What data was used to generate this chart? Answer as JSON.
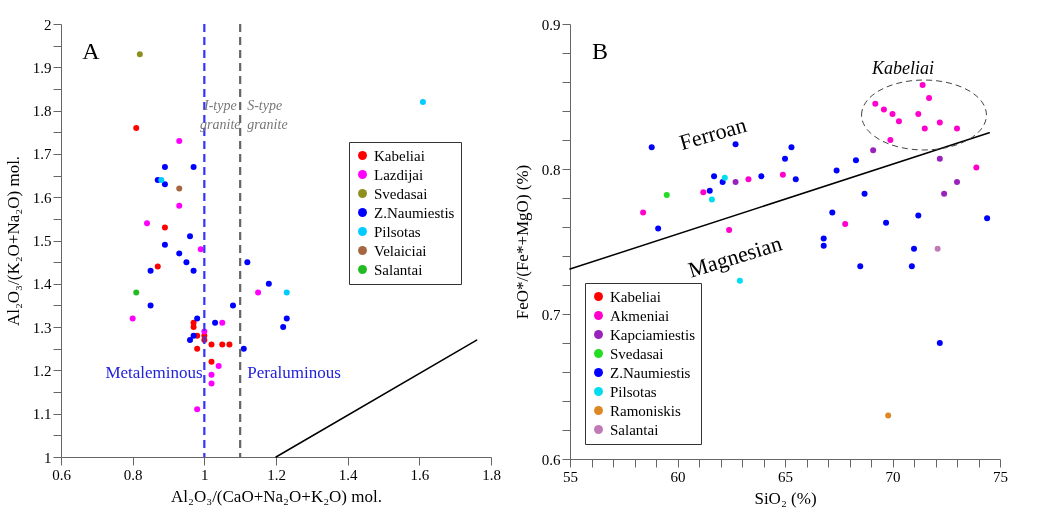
{
  "chart_data": [
    {
      "type": "scatter",
      "xlabel": "Al₂O₃/(CaO+Na₂O+K₂O) mol.",
      "ylabel": "Al₂O₃/(K₂O+Na₂O) mol.",
      "xlim": [
        0.6,
        1.8
      ],
      "xticks": [
        0.6,
        0.8,
        1,
        1.2,
        1.4,
        1.6,
        1.8
      ],
      "ylim": [
        1,
        2
      ],
      "yticks": [
        1,
        {
          "value": 1.05,
          "label": null
        },
        1.1,
        {
          "value": 1.15,
          "label": null
        },
        1.2,
        {
          "value": 1.25,
          "label": null
        },
        1.3,
        {
          "value": 1.35,
          "label": null
        },
        1.4,
        {
          "value": 1.45,
          "label": null
        },
        1.5,
        {
          "value": 1.55,
          "label": null
        },
        1.6,
        {
          "value": 1.65,
          "label": null
        },
        1.7,
        {
          "value": 1.75,
          "label": null
        },
        1.8,
        {
          "value": 1.85,
          "label": null
        },
        1.9,
        {
          "value": 1.95,
          "label": null
        },
        2
      ],
      "legend": "right",
      "marker": "circle",
      "series": [
        {
          "name": "Kabeliai",
          "color": "#ff0000",
          "x": [
            0.81,
            0.89,
            0.87,
            0.97,
            0.97,
            0.98,
            1.0,
            1.0,
            0.98,
            1.02,
            1.05,
            1.07,
            1.02
          ],
          "values": [
            1.76,
            1.53,
            1.44,
            1.31,
            1.3,
            1.28,
            1.28,
            1.27,
            1.25,
            1.26,
            1.26,
            1.26,
            1.22
          ]
        },
        {
          "name": "Lazdijai",
          "color": "#ff00ff",
          "x": [
            0.93,
            0.93,
            0.84,
            0.99,
            0.8,
            1.05,
            1.0,
            1.04,
            1.02,
            1.02,
            0.98,
            1.15
          ],
          "values": [
            1.73,
            1.58,
            1.54,
            1.48,
            1.32,
            1.31,
            1.29,
            1.21,
            1.19,
            1.17,
            1.11,
            1.38
          ]
        },
        {
          "name": "Svedasai",
          "color": "#8f8f1f",
          "x": [
            0.82
          ],
          "values": [
            1.93
          ]
        },
        {
          "name": "Z.Naumiestis",
          "color": "#0000ff",
          "x": [
            0.89,
            0.97,
            0.87,
            0.89,
            0.96,
            0.89,
            0.93,
            0.95,
            0.85,
            0.97,
            0.85,
            0.98,
            1.03,
            0.96,
            0.97,
            1.08,
            1.11,
            1.12,
            1.18,
            1.23,
            1.22
          ],
          "values": [
            1.67,
            1.67,
            1.64,
            1.63,
            1.51,
            1.49,
            1.47,
            1.45,
            1.43,
            1.43,
            1.35,
            1.32,
            1.31,
            1.27,
            1.28,
            1.35,
            1.25,
            1.45,
            1.4,
            1.32,
            1.3
          ]
        },
        {
          "name": "Pilsotas",
          "color": "#00ccff",
          "x": [
            0.88,
            1.61,
            1.23
          ],
          "values": [
            1.64,
            1.82,
            1.38
          ]
        },
        {
          "name": "Velaiciai",
          "color": "#a5673f",
          "x": [
            0.93
          ],
          "values": [
            1.62
          ]
        },
        {
          "name": "Salantai",
          "color": "#22bb22",
          "x": [
            0.81
          ],
          "values": [
            1.38
          ]
        },
        {
          "type": "line",
          "color": "#000000",
          "marker": "none",
          "x": [
            1.2,
            1.76
          ],
          "values": [
            1.0,
            1.27
          ]
        }
      ],
      "ref_lines": [
        {
          "axis": "x",
          "value": 1,
          "label": "I-type granite",
          "color": "#3333ff",
          "line_style": "dashed"
        },
        {
          "axis": "x",
          "value": 1.1,
          "label": "S-type granite",
          "color": "#666666",
          "line_style": "dashed"
        }
      ],
      "annotations": [
        "A",
        "Metaleminous",
        "Peraluminous"
      ]
    },
    {
      "type": "scatter",
      "xlabel": "SiO₂ (%)",
      "ylabel": "FeO*/(Fe*+MgO) (%)",
      "xlim": [
        55,
        75
      ],
      "xticks": [
        55,
        {
          "value": 56,
          "label": null
        },
        {
          "value": 57,
          "label": null
        },
        {
          "value": 58,
          "label": null
        },
        {
          "value": 59,
          "label": null
        },
        60,
        {
          "value": 61,
          "label": null
        },
        {
          "value": 62,
          "label": null
        },
        {
          "value": 63,
          "label": null
        },
        {
          "value": 64,
          "label": null
        },
        65,
        {
          "value": 66,
          "label": null
        },
        {
          "value": 67,
          "label": null
        },
        {
          "value": 68,
          "label": null
        },
        {
          "value": 69,
          "label": null
        },
        70,
        {
          "value": 71,
          "label": null
        },
        {
          "value": 72,
          "label": null
        },
        {
          "value": 73,
          "label": null
        },
        {
          "value": 74,
          "label": null
        },
        75
      ],
      "ylim": [
        0.6,
        0.9
      ],
      "yticks": [
        0.6,
        {
          "value": 0.62,
          "label": null
        },
        {
          "value": 0.64,
          "label": null
        },
        {
          "value": 0.66,
          "label": null
        },
        {
          "value": 0.68,
          "label": null
        },
        0.7,
        {
          "value": 0.72,
          "label": null
        },
        {
          "value": 0.74,
          "label": null
        },
        {
          "value": 0.76,
          "label": null
        },
        {
          "value": 0.78,
          "label": null
        },
        0.8,
        {
          "value": 0.82,
          "label": null
        },
        {
          "value": 0.84,
          "label": null
        },
        {
          "value": 0.86,
          "label": null
        },
        {
          "value": 0.88,
          "label": null
        },
        0.9
      ],
      "legend": "bottom left",
      "marker": "circle",
      "series": [
        {
          "name": "Kabeliai",
          "color": "#ff0000"
        },
        {
          "name": "Akmeniai",
          "color": "#ff00cc",
          "x": [
            63.3,
            64.9,
            61.2,
            58.4,
            62.4,
            71.4,
            71.7,
            69.2,
            69.6,
            70.0,
            71.2,
            70.3,
            72.2,
            71.5,
            73.0,
            69.9,
            73.9,
            67.8
          ],
          "values": [
            0.793,
            0.796,
            0.784,
            0.77,
            0.758,
            0.858,
            0.849,
            0.845,
            0.841,
            0.838,
            0.838,
            0.833,
            0.832,
            0.828,
            0.828,
            0.82,
            0.801,
            0.762
          ]
        },
        {
          "name": "Kapciamiestis",
          "color": "#9922bb",
          "x": [
            62.7,
            69.1,
            72.2,
            73.0,
            72.4
          ],
          "values": [
            0.791,
            0.813,
            0.807,
            0.791,
            0.783
          ]
        },
        {
          "name": "Svedasai",
          "color": "#22dd22",
          "x": [
            59.5
          ],
          "values": [
            0.782
          ]
        },
        {
          "name": "Z.Naumiestis",
          "color": "#0000ff",
          "x": [
            58.8,
            62.7,
            61.7,
            62.1,
            63.9,
            61.5,
            59.1,
            65.3,
            65.0,
            65.5,
            67.4,
            68.3,
            68.7,
            67.2,
            69.7,
            71.2,
            74.4,
            66.8,
            66.8,
            71.0,
            68.5,
            70.9,
            72.2
          ],
          "values": [
            0.815,
            0.817,
            0.795,
            0.791,
            0.795,
            0.785,
            0.759,
            0.815,
            0.807,
            0.793,
            0.799,
            0.806,
            0.783,
            0.77,
            0.763,
            0.768,
            0.766,
            0.752,
            0.747,
            0.745,
            0.733,
            0.733,
            0.68
          ]
        },
        {
          "name": "Pilsotas",
          "color": "#00ddee",
          "x": [
            62.2,
            61.6,
            62.9
          ],
          "values": [
            0.794,
            0.779,
            0.723
          ]
        },
        {
          "name": "Ramoniskis",
          "color": "#dd8822",
          "x": [
            69.8
          ],
          "values": [
            0.63
          ]
        },
        {
          "name": "Salantai",
          "color": "#c07ab8",
          "x": [
            72.1
          ],
          "values": [
            0.745
          ]
        },
        {
          "type": "line",
          "color": "#000000",
          "marker": "none",
          "x": [
            55,
            74.5
          ],
          "values": [
            0.731,
            0.825
          ]
        }
      ],
      "annotations": [
        "B",
        "Ferroan",
        "Magnesian",
        "Kabeliai"
      ]
    }
  ]
}
